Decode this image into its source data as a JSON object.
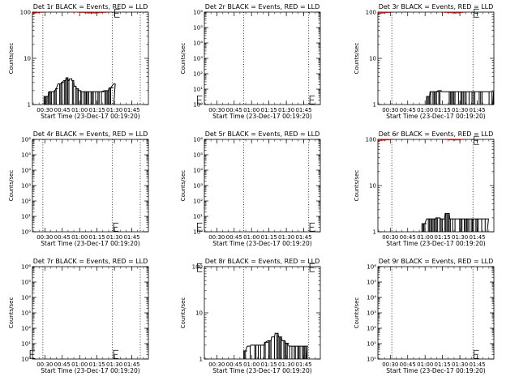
{
  "figure": {
    "ylabel": "Counts/sec",
    "xlabel": "Start Time (23-Dec-17 00:19:20)",
    "x_tick_labels": [
      "00:30",
      "00:45",
      "01:00",
      "01:15",
      "01:30",
      "01:45"
    ],
    "colors": {
      "events": "#000000",
      "lld": "#ff0000",
      "frame": "#000000"
    }
  },
  "chart_data": [
    {
      "type": "line",
      "title": "Det 1r BLACK = Events, RED = LLD",
      "scale": "log",
      "ylim": [
        1,
        100
      ],
      "y_ticks": [
        {
          "v": 1,
          "label": "1"
        },
        {
          "v": 10,
          "label": "10"
        },
        {
          "v": 100,
          "label": "100"
        }
      ],
      "xlim_min": [
        0,
        100
      ],
      "vlines_min": [
        9,
        69,
        93
      ],
      "series": [
        {
          "key": "events",
          "kind": "step",
          "style": "noisy",
          "x": [
            10,
            14,
            17,
            19,
            20,
            22,
            25,
            27,
            29,
            31,
            32,
            34,
            36,
            38,
            40,
            42,
            44,
            47,
            50,
            53,
            56,
            59,
            62,
            66,
            70
          ],
          "y": [
            1.5,
            1.9,
            1.9,
            2,
            2.2,
            2.8,
            3,
            3.3,
            3.8,
            3.3,
            3.6,
            3.3,
            2.5,
            2.2,
            2,
            1.9,
            1.9,
            1.9,
            1.9,
            1.9,
            1.9,
            1.9,
            2,
            2.3,
            2.8
          ]
        },
        {
          "key": "lld",
          "kind": "line",
          "style": "dotted",
          "x": [
            0,
            1,
            2,
            3,
            4,
            5,
            6,
            7,
            8,
            9
          ],
          "y": [
            92,
            95,
            96,
            97,
            98,
            98,
            99,
            100,
            100,
            100
          ]
        },
        {
          "key": "lld",
          "kind": "line",
          "style": "dotted",
          "x": [
            36,
            39,
            42,
            45,
            48,
            51,
            54,
            57,
            60,
            63,
            65
          ],
          "y": [
            100,
            100,
            99,
            98,
            96,
            96,
            96,
            97,
            98,
            99,
            100
          ]
        }
      ],
      "markers": [
        {
          "label": "E",
          "x_min": 71,
          "y": 95
        }
      ]
    },
    {
      "type": "line",
      "title": "Det 2r BLACK = Events, RED = LLD",
      "scale": "log",
      "ylim": [
        1,
        1000000
      ],
      "y_ticks": [
        {
          "v": 1,
          "label": "10⁰"
        },
        {
          "v": 10,
          "label": "10¹"
        },
        {
          "v": 100,
          "label": "10²"
        },
        {
          "v": 1000,
          "label": "10³"
        },
        {
          "v": 10000,
          "label": "10⁴"
        },
        {
          "v": 100000,
          "label": "10⁵"
        },
        {
          "v": 1000000,
          "label": "10⁶"
        }
      ],
      "xlim_min": [
        0,
        100
      ],
      "vlines_min": [
        34,
        90,
        117
      ],
      "series": [],
      "markers": [
        {
          "label": "E",
          "x_min": -6,
          "y": 2
        },
        {
          "label": "E",
          "x_min": 91,
          "y": 2
        }
      ]
    },
    {
      "type": "line",
      "title": "Det 3r BLACK = Events, RED = LLD",
      "scale": "log",
      "ylim": [
        1,
        100
      ],
      "y_ticks": [
        {
          "v": 1,
          "label": "1"
        },
        {
          "v": 10,
          "label": "10"
        },
        {
          "v": 100,
          "label": "100"
        }
      ],
      "xlim_min": [
        0,
        100
      ],
      "vlines_min": [
        12,
        82,
        112
      ],
      "series": [
        {
          "key": "events",
          "kind": "step",
          "style": "noisy",
          "x": [
            42,
            45,
            47,
            49,
            52,
            55,
            58,
            62,
            65,
            69,
            73,
            78,
            83,
            88,
            94,
            99
          ],
          "y": [
            1.5,
            1.9,
            1.9,
            1.9,
            2,
            1.9,
            1.9,
            1.9,
            1.9,
            1.9,
            1.9,
            1.9,
            1.9,
            1.9,
            1.9,
            1.9
          ]
        },
        {
          "key": "lld",
          "kind": "line",
          "style": "dotted",
          "x": [
            0,
            2,
            4,
            6,
            8,
            10,
            12
          ],
          "y": [
            92,
            94,
            96,
            97,
            98,
            99,
            100
          ]
        },
        {
          "key": "lld",
          "kind": "line",
          "style": "dotted",
          "x": [
            55,
            58,
            61,
            64,
            67,
            70,
            73,
            75
          ],
          "y": [
            100,
            99,
            98,
            97,
            96,
            97,
            99,
            100
          ]
        }
      ],
      "markers": [
        {
          "label": "E",
          "x_min": 83,
          "y": 95
        }
      ]
    },
    {
      "type": "line",
      "title": "Det 4r BLACK = Events, RED = LLD",
      "scale": "log",
      "ylim": [
        1,
        1000000
      ],
      "y_ticks": [
        {
          "v": 1,
          "label": "10⁰"
        },
        {
          "v": 10,
          "label": "10¹"
        },
        {
          "v": 100,
          "label": "10²"
        },
        {
          "v": 1000,
          "label": "10³"
        },
        {
          "v": 10000,
          "label": "10⁴"
        },
        {
          "v": 100000,
          "label": "10⁵"
        },
        {
          "v": 1000000,
          "label": "10⁶"
        }
      ],
      "xlim_min": [
        0,
        100
      ],
      "vlines_min": [
        9,
        69,
        93
      ],
      "series": [],
      "markers": [
        {
          "label": "E",
          "x_min": 70,
          "y": 2
        }
      ]
    },
    {
      "type": "line",
      "title": "Det 5r BLACK = Events, RED = LLD",
      "scale": "log",
      "ylim": [
        1,
        1000000
      ],
      "y_ticks": [
        {
          "v": 1,
          "label": "10⁰"
        },
        {
          "v": 10,
          "label": "10¹"
        },
        {
          "v": 100,
          "label": "10²"
        },
        {
          "v": 1000,
          "label": "10³"
        },
        {
          "v": 10000,
          "label": "10⁴"
        },
        {
          "v": 100000,
          "label": "10⁵"
        },
        {
          "v": 1000000,
          "label": "10⁶"
        }
      ],
      "xlim_min": [
        0,
        100
      ],
      "vlines_min": [
        34,
        90,
        117
      ],
      "series": [],
      "markers": [
        {
          "label": "E",
          "x_min": -6,
          "y": 2
        },
        {
          "label": "E",
          "x_min": 91,
          "y": 2
        }
      ]
    },
    {
      "type": "line",
      "title": "Det 6r BLACK = Events, RED = LLD",
      "scale": "log",
      "ylim": [
        1,
        100
      ],
      "y_ticks": [
        {
          "v": 1,
          "label": "1"
        },
        {
          "v": 10,
          "label": "10"
        },
        {
          "v": 100,
          "label": "100"
        }
      ],
      "xlim_min": [
        0,
        100
      ],
      "vlines_min": [
        12,
        82,
        112
      ],
      "series": [
        {
          "key": "events",
          "kind": "step",
          "style": "noisy",
          "x": [
            38,
            42,
            46,
            50,
            54,
            58,
            62,
            66,
            70,
            74,
            78,
            82,
            86,
            90,
            94
          ],
          "y": [
            1.5,
            1.9,
            1.9,
            2,
            1.9,
            2.5,
            1.9,
            1.9,
            1.9,
            1.9,
            1.9,
            1.9,
            1.9,
            1.9,
            1.9
          ]
        },
        {
          "key": "lld",
          "kind": "line",
          "style": "dotted",
          "x": [
            0,
            3,
            6,
            9,
            12
          ],
          "y": [
            93,
            95,
            97,
            98,
            100
          ]
        },
        {
          "key": "lld",
          "kind": "line",
          "style": "dotted",
          "x": [
            58,
            62,
            66,
            70,
            74
          ],
          "y": [
            100,
            98,
            97,
            98,
            100
          ]
        }
      ],
      "markers": [
        {
          "label": "E",
          "x_min": 83,
          "y": 95
        }
      ]
    },
    {
      "type": "line",
      "title": "Det 7r BLACK = Events, RED = LLD",
      "scale": "log",
      "ylim": [
        1,
        1000000
      ],
      "y_ticks": [
        {
          "v": 1,
          "label": "10⁰"
        },
        {
          "v": 10,
          "label": "10¹"
        },
        {
          "v": 100,
          "label": "10²"
        },
        {
          "v": 1000,
          "label": "10³"
        },
        {
          "v": 10000,
          "label": "10⁴"
        },
        {
          "v": 100000,
          "label": "10⁵"
        },
        {
          "v": 1000000,
          "label": "10⁶"
        }
      ],
      "xlim_min": [
        0,
        100
      ],
      "vlines_min": [
        9,
        69,
        93
      ],
      "series": [],
      "markers": [
        {
          "label": "E",
          "x_min": -2,
          "y": 2
        },
        {
          "label": "E",
          "x_min": 70,
          "y": 2
        }
      ]
    },
    {
      "type": "line",
      "title": "Det 8r BLACK = Events, RED = LLD",
      "scale": "log",
      "ylim": [
        1,
        100
      ],
      "y_ticks": [
        {
          "v": 1,
          "label": "1"
        },
        {
          "v": 10,
          "label": "10"
        },
        {
          "v": 100,
          "label": "100"
        }
      ],
      "xlim_min": [
        0,
        100
      ],
      "vlines_min": [
        34,
        90,
        117
      ],
      "series": [
        {
          "key": "events",
          "kind": "step",
          "style": "noisy",
          "x": [
            34,
            37,
            40,
            43,
            46,
            49,
            52,
            55,
            58,
            61,
            64,
            67,
            70,
            73,
            76,
            80,
            84,
            88
          ],
          "y": [
            1.5,
            1.9,
            2,
            2,
            2,
            2,
            2.3,
            2.5,
            3,
            3.6,
            3,
            2.5,
            2.2,
            1.9,
            1.9,
            1.9,
            1.9,
            1.9
          ]
        }
      ],
      "markers": [
        {
          "label": "E",
          "x_min": -6,
          "y": 95
        },
        {
          "label": "E",
          "x_min": 91,
          "y": 95
        }
      ]
    },
    {
      "type": "line",
      "title": "Det 9r BLACK = Events, RED = LLD",
      "scale": "log",
      "ylim": [
        1,
        1000000
      ],
      "y_ticks": [
        {
          "v": 1,
          "label": "10⁰"
        },
        {
          "v": 10,
          "label": "10¹"
        },
        {
          "v": 100,
          "label": "10²"
        },
        {
          "v": 1000,
          "label": "10³"
        },
        {
          "v": 10000,
          "label": "10⁴"
        },
        {
          "v": 100000,
          "label": "10⁵"
        },
        {
          "v": 1000000,
          "label": "10⁶"
        }
      ],
      "xlim_min": [
        0,
        100
      ],
      "vlines_min": [
        12,
        82,
        112
      ],
      "series": [],
      "markers": [
        {
          "label": "E",
          "x_min": 83,
          "y": 2
        }
      ]
    }
  ]
}
